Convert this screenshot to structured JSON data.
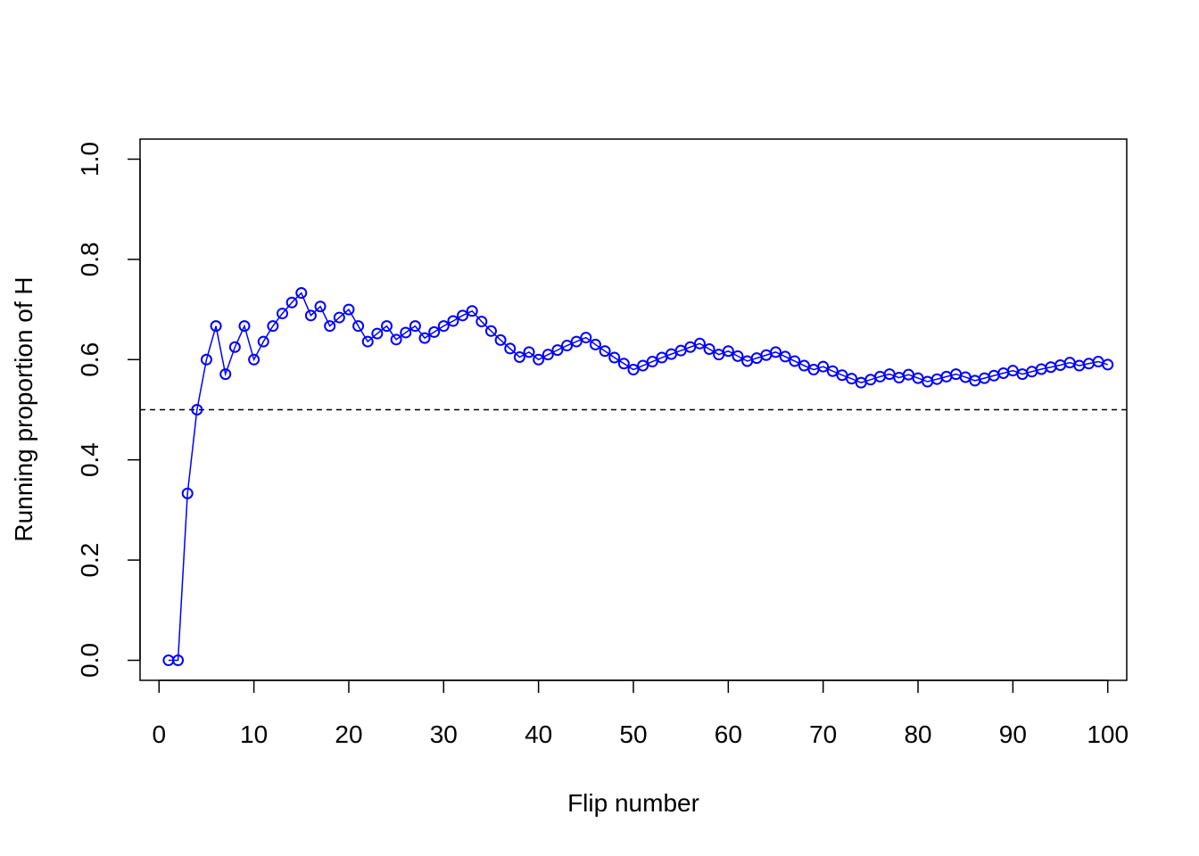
{
  "chart_data": {
    "type": "line",
    "title": "",
    "xlabel": "Flip number",
    "ylabel": "Running proportion of H",
    "xlim": [
      -2,
      102
    ],
    "ylim": [
      -0.04,
      1.04
    ],
    "x_ticks": [
      0,
      10,
      20,
      30,
      40,
      50,
      60,
      70,
      80,
      90,
      100
    ],
    "y_ticks": [
      0.0,
      0.2,
      0.4,
      0.6,
      0.8,
      1.0
    ],
    "x_tick_labels": [
      "0",
      "10",
      "20",
      "30",
      "40",
      "50",
      "60",
      "70",
      "80",
      "90",
      "100"
    ],
    "y_tick_labels": [
      "0.0",
      "0.2",
      "0.4",
      "0.6",
      "0.8",
      "1.0"
    ],
    "grid": false,
    "reference_line": {
      "y": 0.5,
      "style": "dashed",
      "color": "#000000"
    },
    "series": [
      {
        "color": "#0000ff",
        "marker": "open-circle",
        "x": [
          1,
          2,
          3,
          4,
          5,
          6,
          7,
          8,
          9,
          10,
          11,
          12,
          13,
          14,
          15,
          16,
          17,
          18,
          19,
          20,
          21,
          22,
          23,
          24,
          25,
          26,
          27,
          28,
          29,
          30,
          31,
          32,
          33,
          34,
          35,
          36,
          37,
          38,
          39,
          40,
          41,
          42,
          43,
          44,
          45,
          46,
          47,
          48,
          49,
          50,
          51,
          52,
          53,
          54,
          55,
          56,
          57,
          58,
          59,
          60,
          61,
          62,
          63,
          64,
          65,
          66,
          67,
          68,
          69,
          70,
          71,
          72,
          73,
          74,
          75,
          76,
          77,
          78,
          79,
          80,
          81,
          82,
          83,
          84,
          85,
          86,
          87,
          88,
          89,
          90,
          91,
          92,
          93,
          94,
          95,
          96,
          97,
          98,
          99,
          100
        ],
        "values": [
          0.0,
          0.0,
          0.333,
          0.5,
          0.6,
          0.667,
          0.571,
          0.625,
          0.667,
          0.6,
          0.636,
          0.667,
          0.692,
          0.714,
          0.733,
          0.688,
          0.706,
          0.667,
          0.684,
          0.7,
          0.667,
          0.636,
          0.652,
          0.667,
          0.64,
          0.654,
          0.667,
          0.643,
          0.655,
          0.667,
          0.677,
          0.688,
          0.697,
          0.676,
          0.657,
          0.639,
          0.622,
          0.605,
          0.615,
          0.6,
          0.61,
          0.619,
          0.628,
          0.636,
          0.644,
          0.63,
          0.617,
          0.604,
          0.592,
          0.58,
          0.588,
          0.596,
          0.604,
          0.611,
          0.618,
          0.625,
          0.632,
          0.621,
          0.61,
          0.617,
          0.607,
          0.597,
          0.603,
          0.609,
          0.615,
          0.606,
          0.597,
          0.588,
          0.58,
          0.586,
          0.577,
          0.569,
          0.562,
          0.554,
          0.56,
          0.566,
          0.571,
          0.564,
          0.57,
          0.563,
          0.556,
          0.561,
          0.566,
          0.571,
          0.565,
          0.558,
          0.563,
          0.568,
          0.573,
          0.578,
          0.571,
          0.576,
          0.581,
          0.585,
          0.589,
          0.594,
          0.588,
          0.592,
          0.596,
          0.59
        ]
      }
    ]
  }
}
